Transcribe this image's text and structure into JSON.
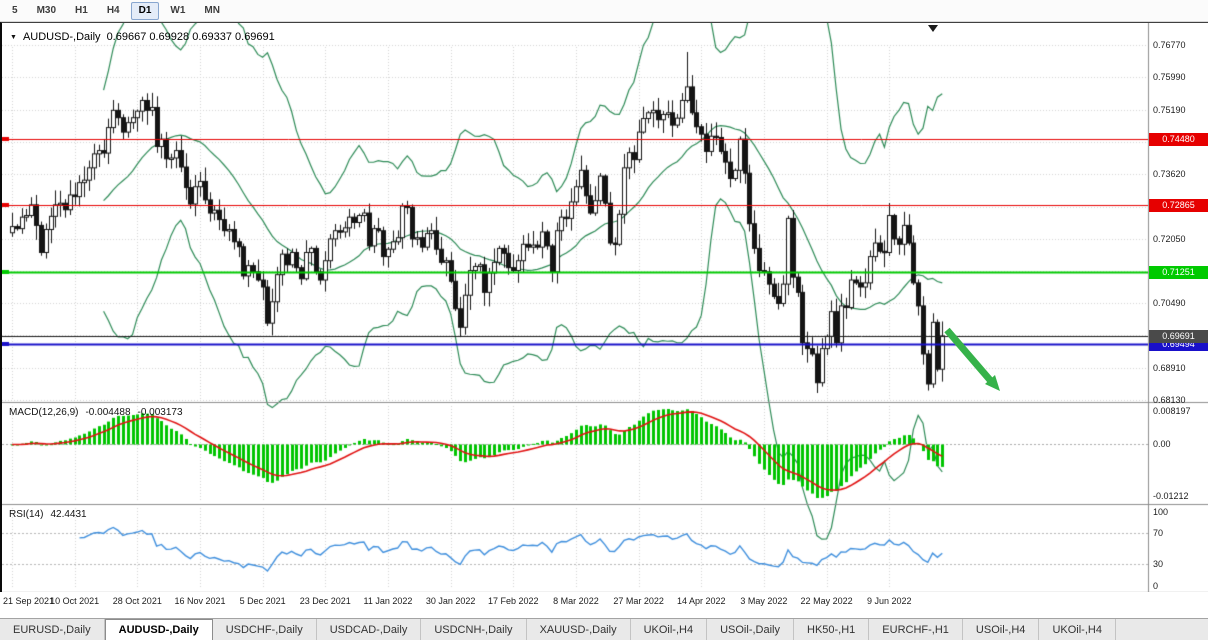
{
  "colors": {
    "arrow": "#36b24a",
    "grid": "#d2d2d2",
    "band": "#2e8b57",
    "bull_fill": "#ffffff",
    "bear_fill": "#141414",
    "candle_outline": "#141414",
    "separator": "#8c8c8c",
    "macd_hist": "#00c400",
    "macd_signal": "#e01212",
    "rsi_line": "#3f8fdd"
  },
  "toolbar": {
    "timeframes": [
      {
        "label": "5",
        "active": false
      },
      {
        "label": "M30",
        "active": false
      },
      {
        "label": "H1",
        "active": false
      },
      {
        "label": "H4",
        "active": false
      },
      {
        "label": "D1",
        "active": true
      },
      {
        "label": "W1",
        "active": false
      },
      {
        "label": "MN",
        "active": false
      }
    ]
  },
  "header": {
    "symbol": "AUDUSD-,Daily",
    "ohlc_text": "0.69667 0.69928 0.69337 0.69691"
  },
  "chart_data": {
    "type": "candlestick",
    "symbol": "AUDUSD-,Daily",
    "ohlc_display": {
      "open": "0.69667",
      "high": "0.69928",
      "low": "0.69337",
      "close": "0.69691"
    },
    "label_every_n_candles": 13,
    "x_labels": [
      "21 Sep 2021",
      "10 Oct 2021",
      "28 Oct 2021",
      "16 Nov 2021",
      "5 Dec 2021",
      "23 Dec 2021",
      "11 Jan 2022",
      "30 Jan 2022",
      "17 Feb 2022",
      "8 Mar 2022",
      "27 Mar 2022",
      "14 Apr 2022",
      "3 May 2022",
      "22 May 2022",
      "9 Jun 2022"
    ],
    "y_axis": {
      "min": 0.6813,
      "max": 0.7677,
      "grid_prices": [
        0.7677,
        0.7599,
        0.7519,
        0.7441,
        0.7362,
        0.7283,
        0.7205,
        0.7127,
        0.7049,
        0.697,
        0.6891,
        0.6813
      ],
      "tick_labels": [
        {
          "price": 0.7677,
          "label": "0.76770"
        },
        {
          "price": 0.7599,
          "label": "0.75990"
        },
        {
          "price": 0.7519,
          "label": "0.75190"
        },
        {
          "price": 0.7362,
          "label": "0.73620"
        },
        {
          "price": 0.7205,
          "label": "0.72050"
        },
        {
          "price": 0.7049,
          "label": "0.70490"
        },
        {
          "price": 0.6891,
          "label": "0.68910"
        },
        {
          "price": 0.6813,
          "label": "0.68130"
        }
      ]
    },
    "levels": [
      {
        "price": 0.7448,
        "label": "0.74480",
        "color": "#e60000",
        "width": 1
      },
      {
        "price": 0.72865,
        "label": "0.72865",
        "color": "#e60000",
        "width": 1
      },
      {
        "price": 0.71251,
        "label": "0.71251",
        "color": "#00ca00",
        "width": 2
      },
      {
        "price": 0.69494,
        "label": "0.69494",
        "color": "#1910c9",
        "width": 2
      }
    ],
    "bid_line": {
      "price": 0.69691,
      "label": "0.69691",
      "color": "#1a1a1a",
      "label_bg": "#4a4a4a",
      "width": 1
    },
    "bollinger": {
      "period": 20,
      "deviation": 2
    },
    "closes": [
      0.7235,
      0.723,
      0.7258,
      0.7262,
      0.7288,
      0.7238,
      0.7172,
      0.7228,
      0.726,
      0.7288,
      0.7292,
      0.7276,
      0.7312,
      0.7308,
      0.7342,
      0.7348,
      0.7378,
      0.7412,
      0.742,
      0.7414,
      0.7476,
      0.7518,
      0.75,
      0.7465,
      0.7488,
      0.75,
      0.7516,
      0.7542,
      0.7518,
      0.7525,
      0.743,
      0.7448,
      0.74,
      0.7402,
      0.742,
      0.738,
      0.733,
      0.729,
      0.7332,
      0.7345,
      0.73,
      0.7268,
      0.7275,
      0.7252,
      0.7225,
      0.7228,
      0.7198,
      0.7186,
      0.7115,
      0.714,
      0.7125,
      0.7105,
      0.7088,
      0.7,
      0.7052,
      0.7118,
      0.7168,
      0.7142,
      0.7172,
      0.7135,
      0.7108,
      0.7172,
      0.7182,
      0.7125,
      0.7105,
      0.7152,
      0.7205,
      0.7225,
      0.7222,
      0.7232,
      0.7258,
      0.7245,
      0.7262,
      0.7268,
      0.7188,
      0.723,
      0.7225,
      0.7162,
      0.718,
      0.7198,
      0.7208,
      0.7285,
      0.7282,
      0.7205,
      0.7208,
      0.7185,
      0.7218,
      0.7225,
      0.718,
      0.7148,
      0.7152,
      0.7102,
      0.7035,
      0.699,
      0.7068,
      0.7128,
      0.7138,
      0.7142,
      0.7075,
      0.7122,
      0.7148,
      0.7182,
      0.717,
      0.7135,
      0.7128,
      0.7152,
      0.7192,
      0.7185,
      0.719,
      0.7185,
      0.7222,
      0.7188,
      0.7125,
      0.7225,
      0.7258,
      0.7255,
      0.7295,
      0.7332,
      0.7372,
      0.731,
      0.7268,
      0.7298,
      0.7358,
      0.7292,
      0.7195,
      0.7192,
      0.7265,
      0.7378,
      0.7415,
      0.7398,
      0.7465,
      0.7498,
      0.7512,
      0.7518,
      0.7495,
      0.7508,
      0.7512,
      0.7482,
      0.7499,
      0.7542,
      0.7575,
      0.7512,
      0.7478,
      0.746,
      0.7418,
      0.7455,
      0.7452,
      0.7418,
      0.7392,
      0.7352,
      0.7372,
      0.7448,
      0.7365,
      0.7242,
      0.7182,
      0.7128,
      0.7125,
      0.7095,
      0.7065,
      0.7048,
      0.7095,
      0.7255,
      0.7112,
      0.7075,
      0.6952,
      0.6938,
      0.6925,
      0.6855,
      0.6938,
      0.6968,
      0.7028,
      0.6952,
      0.7042,
      0.7038,
      0.7105,
      0.7098,
      0.7088,
      0.7098,
      0.7162,
      0.7195,
      0.7175,
      0.7172,
      0.7262,
      0.7205,
      0.7192,
      0.7238,
      0.7195,
      0.7098,
      0.7042,
      0.6925,
      0.6852,
      0.7002,
      0.6888,
      0.6969
    ],
    "high_overrides": {
      "140": 0.766
    },
    "low_overrides": {
      "53": 0.6993,
      "93": 0.6966,
      "167": 0.683,
      "190": 0.6836
    },
    "indicators": {
      "macd": {
        "label": "MACD(12,26,9)",
        "value_main": "-0.004488",
        "value_signal": "-0.003173",
        "scale_labels": [
          "0.008197",
          "0.00",
          "-0.01212"
        ],
        "fast": 12,
        "slow": 26,
        "signal": 9
      },
      "rsi": {
        "label": "RSI(14)",
        "value": "42.4431",
        "period": 14,
        "scale_labels": [
          "100",
          "70",
          "30",
          "0"
        ],
        "guide_levels": [
          70,
          30
        ]
      }
    }
  },
  "tabs": [
    {
      "label": "EURUSD-,Daily",
      "active": false
    },
    {
      "label": "AUDUSD-,Daily",
      "active": true
    },
    {
      "label": "USDCHF-,Daily",
      "active": false
    },
    {
      "label": "USDCAD-,Daily",
      "active": false
    },
    {
      "label": "USDCNH-,Daily",
      "active": false
    },
    {
      "label": "XAUUSD-,Daily",
      "active": false
    },
    {
      "label": "UKOil-,H4",
      "active": false
    },
    {
      "label": "USOil-,Daily",
      "active": false
    },
    {
      "label": "HK50-,H1",
      "active": false
    },
    {
      "label": "EURCHF-,H1",
      "active": false
    },
    {
      "label": "USOil-,H4",
      "active": false
    },
    {
      "label": "UKOil-,H4",
      "active": false
    }
  ]
}
